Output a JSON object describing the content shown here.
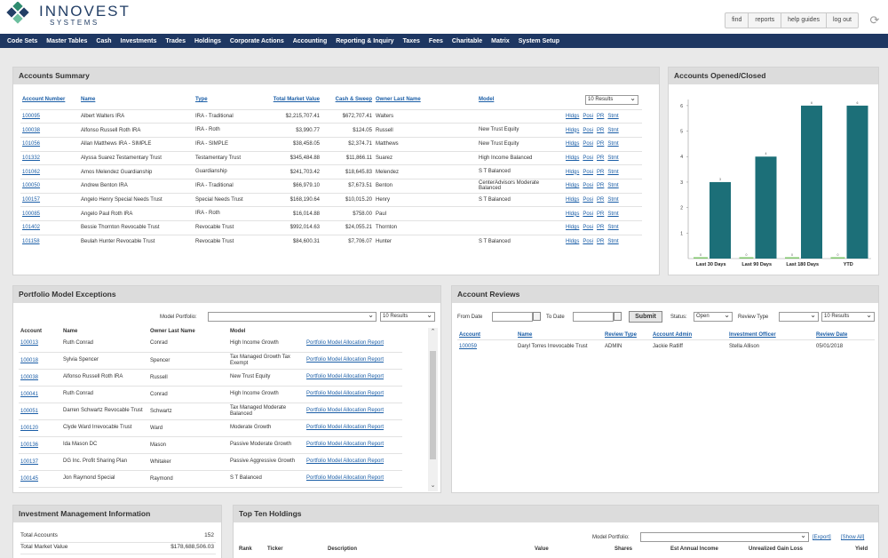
{
  "brand": {
    "name": "INNOVEST",
    "sub": "SYSTEMS"
  },
  "toplinks": [
    "find",
    "reports",
    "help guides",
    "log out"
  ],
  "nav": [
    "Code Sets",
    "Master Tables",
    "Cash",
    "Investments",
    "Trades",
    "Holdings",
    "Corporate Actions",
    "Accounting",
    "Reporting & Inquiry",
    "Taxes",
    "Fees",
    "Charitable",
    "Matrix",
    "System Setup"
  ],
  "accounts_summary": {
    "title": "Accounts Summary",
    "results_select": "10 Results",
    "headers": [
      "Account Number",
      "Name",
      "Type",
      "Total Market Value",
      "Cash & Sweep",
      "Owner Last Name",
      "Model"
    ],
    "action_links": [
      "Hldgs",
      "Posi",
      "PR",
      "Stmt"
    ],
    "rows": [
      [
        "100095",
        "Albert Walters IRA",
        "IRA - Traditional",
        "$2,215,707.41",
        "$672,707.41",
        "Walters",
        ""
      ],
      [
        "100038",
        "Alfonso Russell Roth IRA",
        "IRA - Roth",
        "$3,990.77",
        "$124.05",
        "Russell",
        "New Trust Equity"
      ],
      [
        "101056",
        "Allan Matthews IRA - SIMPLE",
        "IRA - SIMPLE",
        "$38,458.05",
        "$2,374.71",
        "Matthews",
        "New Trust Equity"
      ],
      [
        "101332",
        "Alyssa Suarez Testamentary Trust",
        "Testamentary Trust",
        "$345,484.88",
        "$11,866.11",
        "Suarez",
        "High Income Balanced"
      ],
      [
        "101062",
        "Amos Melendez Guardianship",
        "Guardianship",
        "$241,703.42",
        "$18,645.83",
        "Melendez",
        "S T Balanced"
      ],
      [
        "100050",
        "Andrew Benton IRA",
        "IRA - Traditional",
        "$66,979.10",
        "$7,673.51",
        "Benton",
        "CenterAdvisors Moderate Balanced"
      ],
      [
        "100157",
        "Angelo Henry Special Needs Trust",
        "Special Needs Trust",
        "$168,190.64",
        "$10,015.20",
        "Henry",
        "S T Balanced"
      ],
      [
        "100085",
        "Angelo Paul Roth IRA",
        "IRA - Roth",
        "$16,014.88",
        "$758.00",
        "Paul",
        ""
      ],
      [
        "101402",
        "Bessie Thornton Revocable Trust",
        "Revocable Trust",
        "$992,014.63",
        "$24,055.21",
        "Thornton",
        ""
      ],
      [
        "101158",
        "Beulah Hunter Revocable Trust",
        "Revocable Trust",
        "$84,600.31",
        "$7,706.07",
        "Hunter",
        "S T Balanced"
      ]
    ]
  },
  "accounts_opened": {
    "title": "Accounts Opened/Closed",
    "chart_data": {
      "type": "bar",
      "categories": [
        "Last 30 Days",
        "Last 90 Days",
        "Last 180 Days",
        "YTD"
      ],
      "series": [
        {
          "values": [
            0,
            0,
            0,
            0
          ],
          "color": "#7dc46a"
        },
        {
          "values": [
            3,
            4,
            6,
            6
          ],
          "color": "#1c6f78"
        }
      ],
      "yticks": [
        1,
        2,
        3,
        4,
        5,
        6
      ],
      "ylim": [
        0,
        6.1
      ]
    }
  },
  "portfolio_exceptions": {
    "title": "Portfolio Model Exceptions",
    "model_portfolio_label": "Model Portfolio:",
    "results_select": "10 Results",
    "headers": [
      "Account",
      "Name",
      "Owner Last Name",
      "Model",
      ""
    ],
    "link_text": "Portfolio Model Allocation Report",
    "rows": [
      [
        "100013",
        "Ruth Conrad",
        "Conrad",
        "High Income Growth"
      ],
      [
        "100018",
        "Sylvia Spencer",
        "Spencer",
        "Tax Managed Growth Tax Exempt"
      ],
      [
        "100038",
        "Alfonso Russell Roth IRA",
        "Russell",
        "New Trust Equity"
      ],
      [
        "100041",
        "Ruth Conrad",
        "Conrad",
        "High Income Growth"
      ],
      [
        "100051",
        "Darren Schwartz Revocable Trust",
        "Schwartz",
        "Tax Managed Moderate Balanced"
      ],
      [
        "100120",
        "Clyde Ward Irrevocable Trust",
        "Ward",
        "Moderate Growth"
      ],
      [
        "100136",
        "Ida Mason DC",
        "Mason",
        "Passive Moderate Growth"
      ],
      [
        "100137",
        "DG Inc. Profit Sharing Plan",
        "Whitaker",
        "Passive Aggressive Growth"
      ],
      [
        "100145",
        "Jon Raymond Special",
        "Raymond",
        "S T Balanced"
      ]
    ]
  },
  "account_reviews": {
    "title": "Account Reviews",
    "from_label": "From Date",
    "to_label": "To Date",
    "submit": "Submit",
    "status_label": "Status:",
    "status_value": "Open",
    "review_type_label": "Review Type",
    "results_select": "10 Results",
    "headers": [
      "Account",
      "Name",
      "Review Type",
      "Account Admin",
      "Investment Officer",
      "Review Date"
    ],
    "rows": [
      [
        "100059",
        "Daryl Torres Irrevocable Trust",
        "ADMIN",
        "Jackie Ratliff",
        "Stella Allison",
        "05/01/2018"
      ]
    ]
  },
  "investment_management": {
    "title": "Investment Management Information",
    "rows": [
      [
        "Total Accounts",
        "152"
      ],
      [
        "Total Market Value",
        "$178,688,506.03"
      ]
    ]
  },
  "top_holdings": {
    "title": "Top Ten Holdings",
    "model_portfolio_label": "Model Portfolio:",
    "export": "[Export]",
    "show_all": "[Show All]",
    "headers": [
      "Rank",
      "Ticker",
      "Description",
      "Value",
      "Shares",
      "Est Annual Income",
      "Unrealized Gain Loss",
      "Yield"
    ]
  }
}
